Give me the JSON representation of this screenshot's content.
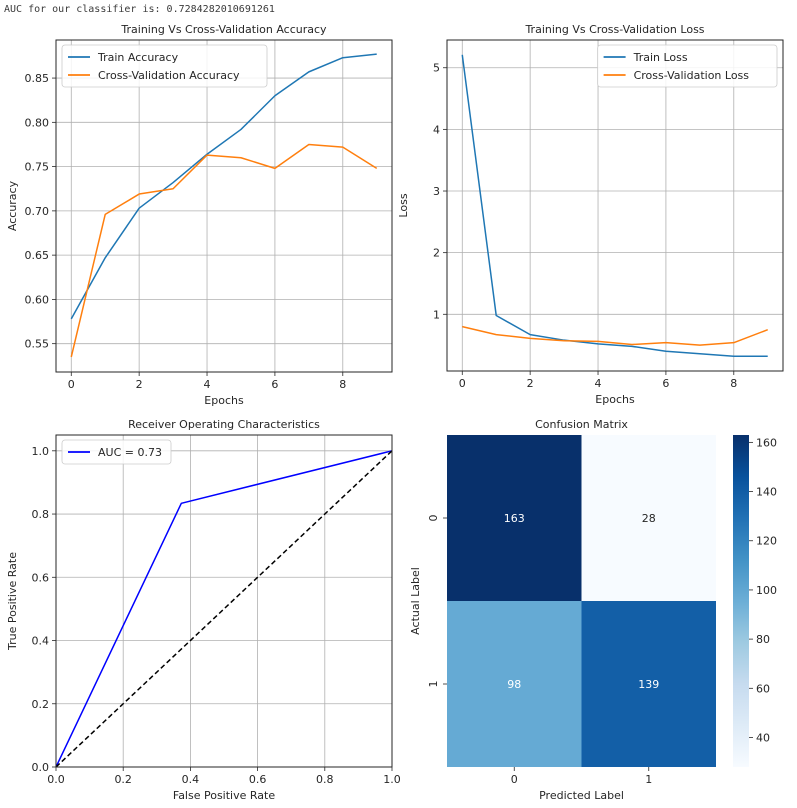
{
  "console_output": "AUC for our classifier is: 0.7284282010691261",
  "chart_data": [
    {
      "type": "line",
      "title": "Training Vs Cross-Validation Accuracy",
      "xlabel": "Epochs",
      "ylabel": "Accuracy",
      "x": [
        0,
        1,
        2,
        3,
        4,
        5,
        6,
        7,
        8,
        9
      ],
      "xlim": [
        -0.45,
        9.45
      ],
      "ylim": [
        0.518,
        0.893
      ],
      "xticks": [
        0,
        2,
        4,
        6,
        8
      ],
      "yticks": [
        0.55,
        0.6,
        0.65,
        0.7,
        0.75,
        0.8,
        0.85
      ],
      "ytick_labels": [
        "0.55",
        "0.60",
        "0.65",
        "0.70",
        "0.75",
        "0.80",
        "0.85"
      ],
      "grid": true,
      "legend_position": "upper-left",
      "series": [
        {
          "name": "Train Accuracy",
          "color": "#1f77b4",
          "values": [
            0.578,
            0.647,
            0.703,
            0.732,
            0.764,
            0.792,
            0.83,
            0.857,
            0.873,
            0.877
          ]
        },
        {
          "name": "Cross-Validation Accuracy",
          "color": "#ff7f0e",
          "values": [
            0.535,
            0.696,
            0.719,
            0.725,
            0.763,
            0.76,
            0.748,
            0.775,
            0.772,
            0.748
          ]
        }
      ]
    },
    {
      "type": "line",
      "title": "Training Vs Cross-Validation Loss",
      "xlabel": "Epochs",
      "ylabel": "Loss",
      "x": [
        0,
        1,
        2,
        3,
        4,
        5,
        6,
        7,
        8,
        9
      ],
      "xlim": [
        -0.45,
        9.45
      ],
      "ylim": [
        0.08,
        5.45
      ],
      "xticks": [
        0,
        2,
        4,
        6,
        8
      ],
      "yticks": [
        1,
        2,
        3,
        4,
        5
      ],
      "ytick_labels": [
        "1",
        "2",
        "3",
        "4",
        "5"
      ],
      "grid": true,
      "legend_position": "upper-right",
      "series": [
        {
          "name": "Train Loss",
          "color": "#1f77b4",
          "values": [
            5.21,
            0.98,
            0.67,
            0.58,
            0.52,
            0.48,
            0.4,
            0.36,
            0.32,
            0.32
          ]
        },
        {
          "name": "Cross-Validation Loss",
          "color": "#ff7f0e",
          "values": [
            0.8,
            0.67,
            0.61,
            0.57,
            0.56,
            0.51,
            0.54,
            0.5,
            0.54,
            0.75
          ]
        }
      ]
    },
    {
      "type": "line",
      "title": "Receiver Operating Characteristics",
      "xlabel": "False Positive Rate",
      "ylabel": "True Positive Rate",
      "xlim": [
        0,
        1
      ],
      "ylim": [
        0,
        1.05
      ],
      "xticks": [
        0,
        0.2,
        0.4,
        0.6,
        0.8,
        1.0
      ],
      "xtick_labels": [
        "0.0",
        "0.2",
        "0.4",
        "0.6",
        "0.8",
        "1.0"
      ],
      "yticks": [
        0,
        0.2,
        0.4,
        0.6,
        0.8,
        1.0
      ],
      "ytick_labels": [
        "0.0",
        "0.2",
        "0.4",
        "0.6",
        "0.8",
        "1.0"
      ],
      "grid": true,
      "legend_position": "upper-left",
      "series": [
        {
          "name": "AUC = 0.73",
          "color": "#0000ff",
          "x": [
            0,
            0.373,
            1
          ],
          "values": [
            0,
            0.834,
            1
          ],
          "style": "solid"
        },
        {
          "name": "",
          "color": "#000000",
          "x": [
            0,
            1
          ],
          "values": [
            0,
            1
          ],
          "style": "dashed"
        }
      ]
    },
    {
      "type": "heatmap",
      "title": "Confusion Matrix",
      "xlabel": "Predicted Label",
      "ylabel": "Actual Label",
      "xtick_labels": [
        "0",
        "1"
      ],
      "ytick_labels": [
        "0",
        "1"
      ],
      "values": [
        [
          163,
          28
        ],
        [
          98,
          139
        ]
      ],
      "colormap": "Blues",
      "color_range": [
        28,
        163
      ],
      "colorbar_ticks": [
        40,
        60,
        80,
        100,
        120,
        140,
        160
      ],
      "colorbar_tick_labels": [
        "40",
        "60",
        "80",
        "100",
        "120",
        "140",
        "160"
      ]
    }
  ]
}
